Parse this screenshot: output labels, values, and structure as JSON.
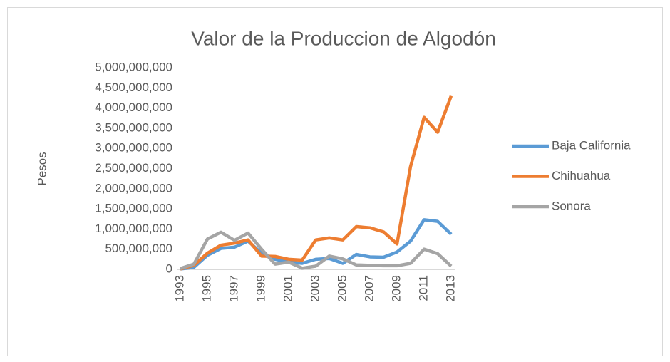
{
  "chart_data": {
    "type": "line",
    "title": "Valor de la Produccion de Algodón",
    "y_label": "Pesos",
    "x": [
      1993,
      1994,
      1995,
      1996,
      1997,
      1998,
      1999,
      2000,
      2001,
      2002,
      2003,
      2004,
      2005,
      2006,
      2007,
      2008,
      2009,
      2010,
      2011,
      2012,
      2013
    ],
    "xlim": [
      1993,
      2013
    ],
    "xticks": [
      1993,
      1995,
      1997,
      1999,
      2001,
      2003,
      2005,
      2007,
      2009,
      2011,
      2013
    ],
    "ylim": [
      0,
      5000000000
    ],
    "yticks": [
      0,
      {
        "value": 500000000,
        "label": "500,000,000"
      },
      {
        "value": 1000000000,
        "label": "1,000,000,000"
      },
      {
        "value": 1500000000,
        "label": "1,500,000,000"
      },
      {
        "value": 2000000000,
        "label": "2,000,000,000"
      },
      {
        "value": 2500000000,
        "label": "2,500,000,000"
      },
      {
        "value": 3000000000,
        "label": "3,000,000,000"
      },
      {
        "value": 3500000000,
        "label": "3,500,000,000"
      },
      {
        "value": 4000000000,
        "label": "4,000,000,000"
      },
      {
        "value": 4500000000,
        "label": "4,500,000,000"
      },
      {
        "value": 5000000000,
        "label": "5,000,000,000"
      }
    ],
    "legend": "right",
    "series": [
      {
        "name": "Baja California",
        "color": "#5b9bd5",
        "values": [
          10000000,
          50000000,
          350000000,
          520000000,
          550000000,
          700000000,
          400000000,
          250000000,
          180000000,
          150000000,
          250000000,
          270000000,
          150000000,
          370000000,
          310000000,
          300000000,
          430000000,
          700000000,
          1230000000,
          1190000000,
          870000000
        ]
      },
      {
        "name": "Chihuahua",
        "color": "#ed7d31",
        "values": [
          10000000,
          100000000,
          400000000,
          600000000,
          650000000,
          730000000,
          330000000,
          320000000,
          250000000,
          230000000,
          730000000,
          780000000,
          730000000,
          1060000000,
          1030000000,
          930000000,
          630000000,
          2550000000,
          3770000000,
          3400000000,
          4300000000
        ]
      },
      {
        "name": "Sonora",
        "color": "#a5a5a5",
        "values": [
          20000000,
          130000000,
          750000000,
          920000000,
          720000000,
          900000000,
          500000000,
          130000000,
          180000000,
          30000000,
          80000000,
          330000000,
          260000000,
          110000000,
          100000000,
          90000000,
          90000000,
          150000000,
          500000000,
          390000000,
          80000000
        ]
      }
    ]
  }
}
